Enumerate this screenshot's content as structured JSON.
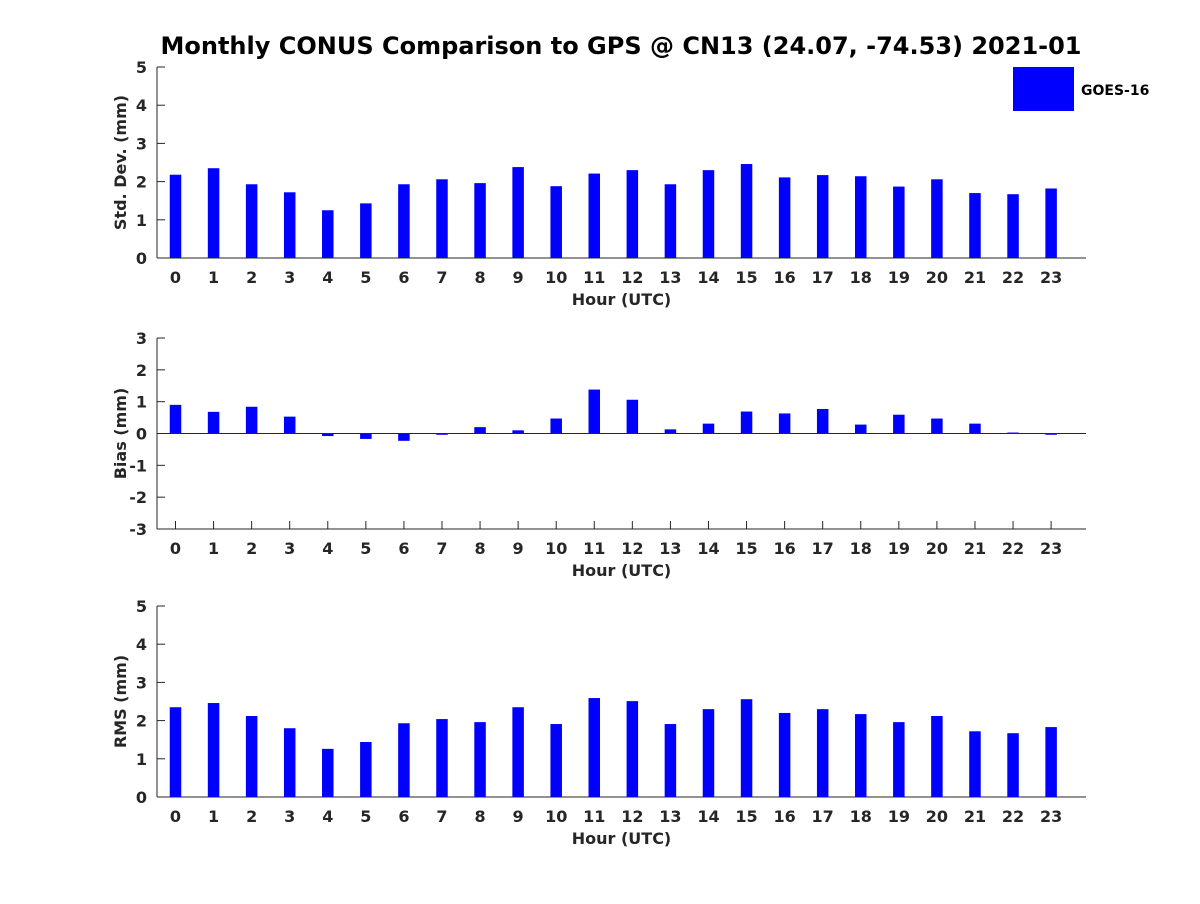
{
  "figure": {
    "title": "Monthly CONUS Comparison to GPS @ CN13 (24.07, -74.53) 2021-01"
  },
  "legend": {
    "label": "GOES-16",
    "placement": "top-right",
    "color": "#0000ff"
  },
  "chart_data": [
    {
      "type": "bar",
      "title": "",
      "xlabel": "Hour (UTC)",
      "ylabel": "Std. Dev. (mm)",
      "ylim": [
        0,
        5
      ],
      "yticks": [
        "0",
        "1",
        "2",
        "3",
        "4",
        "5"
      ],
      "categories": [
        "0",
        "1",
        "2",
        "3",
        "4",
        "5",
        "6",
        "7",
        "8",
        "9",
        "10",
        "11",
        "12",
        "13",
        "14",
        "15",
        "16",
        "17",
        "18",
        "19",
        "20",
        "21",
        "22",
        "23"
      ],
      "series": [
        {
          "name": "GOES-16",
          "color": "#0000ff",
          "values": [
            2.18,
            2.35,
            1.93,
            1.72,
            1.25,
            1.43,
            1.93,
            2.06,
            1.96,
            2.38,
            1.88,
            2.21,
            2.3,
            1.93,
            2.3,
            2.46,
            2.11,
            2.17,
            2.14,
            1.87,
            2.06,
            1.7,
            1.67,
            1.82
          ]
        }
      ],
      "grid": false
    },
    {
      "type": "bar",
      "title": "",
      "xlabel": "Hour (UTC)",
      "ylabel": "Bias (mm)",
      "ylim": [
        -3,
        3
      ],
      "yticks": [
        "-3",
        "-2",
        "-1",
        "0",
        "1",
        "2",
        "3"
      ],
      "categories": [
        "0",
        "1",
        "2",
        "3",
        "4",
        "5",
        "6",
        "7",
        "8",
        "9",
        "10",
        "11",
        "12",
        "13",
        "14",
        "15",
        "16",
        "17",
        "18",
        "19",
        "20",
        "21",
        "22",
        "23"
      ],
      "series": [
        {
          "name": "GOES-16",
          "color": "#0000ff",
          "values": [
            0.9,
            0.68,
            0.84,
            0.53,
            -0.08,
            -0.17,
            -0.23,
            -0.04,
            0.2,
            0.1,
            0.47,
            1.38,
            1.06,
            0.13,
            0.31,
            0.69,
            0.63,
            0.77,
            0.28,
            0.59,
            0.47,
            0.31,
            0.03,
            -0.04
          ]
        }
      ],
      "grid": false
    },
    {
      "type": "bar",
      "title": "",
      "xlabel": "Hour (UTC)",
      "ylabel": "RMS (mm)",
      "ylim": [
        0,
        5
      ],
      "yticks": [
        "0",
        "1",
        "2",
        "3",
        "4",
        "5"
      ],
      "categories": [
        "0",
        "1",
        "2",
        "3",
        "4",
        "5",
        "6",
        "7",
        "8",
        "9",
        "10",
        "11",
        "12",
        "13",
        "14",
        "15",
        "16",
        "17",
        "18",
        "19",
        "20",
        "21",
        "22",
        "23"
      ],
      "series": [
        {
          "name": "GOES-16",
          "color": "#0000ff",
          "values": [
            2.35,
            2.46,
            2.12,
            1.8,
            1.26,
            1.44,
            1.93,
            2.04,
            1.96,
            2.35,
            1.91,
            2.59,
            2.51,
            1.91,
            2.3,
            2.56,
            2.2,
            2.3,
            2.17,
            1.96,
            2.12,
            1.72,
            1.67,
            1.83
          ]
        }
      ],
      "grid": false
    }
  ]
}
